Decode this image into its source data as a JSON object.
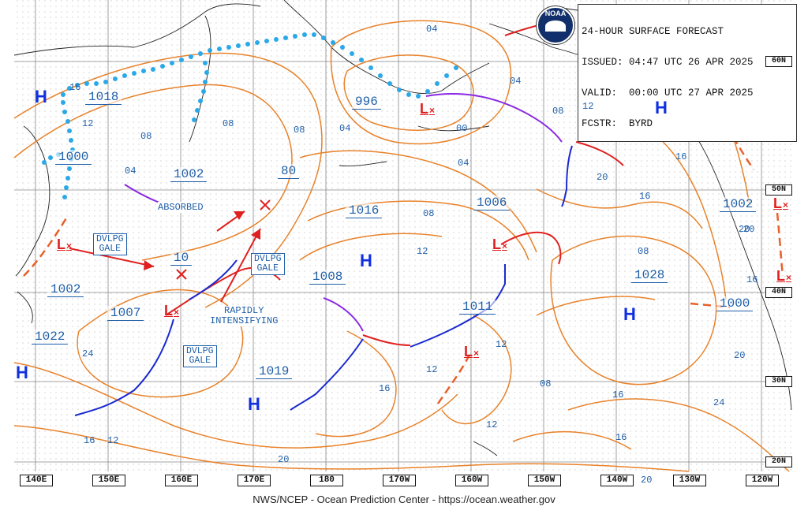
{
  "header": {
    "title_line": "24-HOUR SURFACE FORECAST",
    "issued_line": "ISSUED: 04:47 UTC 26 APR 2025",
    "valid_line": "VALID:  00:00 UTC 27 APR 2025",
    "forecaster_line": "FCSTR:  BYRD"
  },
  "footer": {
    "credit": "NWS/NCEP - Ocean Prediction Center - https://ocean.weather.gov"
  },
  "logo": {
    "text": "NOAA"
  },
  "longitude_labels": [
    "140E",
    "150E",
    "160E",
    "170E",
    "180",
    "170W",
    "160W",
    "150W",
    "140W",
    "130W",
    "120W"
  ],
  "latitude_labels": [
    "60N",
    "50N",
    "40N",
    "30N",
    "20N"
  ],
  "pressure_systems": [
    {
      "type": "H",
      "pressure": "1018",
      "color": "#1030e0"
    },
    {
      "type": "H",
      "pressure": "1028",
      "color": "#1030e0"
    },
    {
      "type": "H",
      "pressure": "",
      "color": "#1030e0"
    },
    {
      "type": "H",
      "pressure": "1019",
      "color": "#1030e0"
    },
    {
      "type": "H",
      "pressure": "1008",
      "color": "#1030e0"
    },
    {
      "type": "H",
      "pressure": "",
      "color": "#1030e0"
    },
    {
      "type": "L",
      "pressure": "996",
      "color": "#e02020"
    },
    {
      "type": "L",
      "pressure": "1000",
      "color": "#e02020"
    },
    {
      "type": "L",
      "pressure": "1002",
      "color": "#e02020"
    },
    {
      "type": "L",
      "pressure": "1007",
      "color": "#e02020"
    },
    {
      "type": "L",
      "pressure": "1006",
      "color": "#e02020"
    },
    {
      "type": "L",
      "pressure": "1011",
      "color": "#e02020"
    },
    {
      "type": "L",
      "pressure": "1002",
      "color": "#e02020"
    }
  ],
  "standalone_pressures": [
    "1002",
    "80",
    "1016",
    "10",
    "1022",
    "1000",
    "1019"
  ],
  "isobar_labels": [
    "16",
    "12",
    "08",
    "04",
    "04",
    "04",
    "00",
    "04",
    "08",
    "12",
    "16",
    "20",
    "24",
    "12",
    "08",
    "12",
    "16",
    "20",
    "24",
    "20",
    "16",
    "20",
    "16",
    "12",
    "20",
    "16",
    "08",
    "16",
    "12",
    "08",
    "04",
    "08",
    "08",
    "12",
    "16",
    "20"
  ],
  "annotations": {
    "absorbed": "ABSORBED",
    "rapidly": [
      "RAPIDLY",
      "INTENSIFYING"
    ],
    "dvlpg_gale": [
      "DVLPG",
      "GALE"
    ]
  },
  "colors": {
    "isobar": "#e8822a",
    "warm_front": "#e02020",
    "cold_front": "#1a2ad0",
    "occluded": "#8a2be2",
    "ice_edge": "#2aa8e8",
    "coast": "#222222",
    "grid": "#777777",
    "label_blue": "#1f5fa8"
  }
}
